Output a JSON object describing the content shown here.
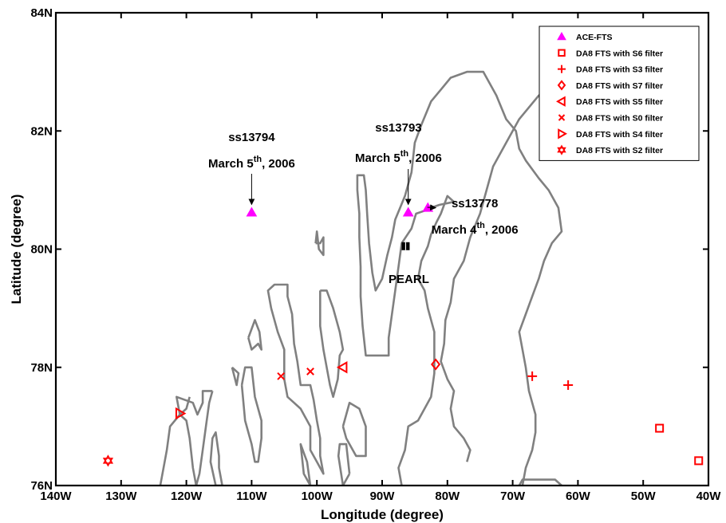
{
  "chart_data": {
    "type": "scatter",
    "xlabel": "Longitude (degree)",
    "ylabel": "Latitude (degree)",
    "xlim": [
      -140,
      -40
    ],
    "ylim": [
      76,
      84
    ],
    "x_ticks": [
      -140,
      -130,
      -120,
      -110,
      -100,
      -90,
      -80,
      -70,
      -60,
      -50,
      -40
    ],
    "x_tick_labels": [
      "140W",
      "130W",
      "120W",
      "110W",
      "100W",
      "90W",
      "80W",
      "70W",
      "60W",
      "50W",
      "40W"
    ],
    "y_ticks": [
      76,
      78,
      80,
      82,
      84
    ],
    "y_tick_labels": [
      "76N",
      "78N",
      "80N",
      "82N",
      "84N"
    ],
    "grid": false,
    "legend_position": "top-right",
    "colors": {
      "ace": "#ff00ff",
      "da8": "#ff0000",
      "coast": "#808080",
      "station": "#000000"
    },
    "series": [
      {
        "name": "ACE-FTS",
        "marker": "triangle-up",
        "color": "#ff00ff",
        "filled": true,
        "points": [
          [
            -110,
            80.62
          ],
          [
            -86,
            80.62
          ],
          [
            -83,
            80.7
          ]
        ]
      },
      {
        "name": "DA8 FTS with S6 filter",
        "marker": "square",
        "color": "#ff0000",
        "points": [
          [
            -47.5,
            76.97
          ],
          [
            -41.5,
            76.42
          ]
        ]
      },
      {
        "name": "DA8 FTS with S3 filter",
        "marker": "plus",
        "color": "#ff0000",
        "points": [
          [
            -67,
            77.85
          ],
          [
            -61.5,
            77.7
          ]
        ]
      },
      {
        "name": "DA8 FTS with S7 filter",
        "marker": "diamond",
        "color": "#ff0000",
        "points": [
          [
            -81.8,
            78.05
          ]
        ]
      },
      {
        "name": "DA8 FTS with S5 filter",
        "marker": "triangle-left",
        "color": "#ff0000",
        "points": [
          [
            -96,
            78
          ]
        ]
      },
      {
        "name": "DA8 FTS with S0 filter",
        "marker": "x",
        "color": "#ff0000",
        "points": [
          [
            -105.5,
            77.85
          ],
          [
            -101,
            77.93
          ]
        ]
      },
      {
        "name": "DA8 FTS with S4 filter",
        "marker": "triangle-right",
        "color": "#ff0000",
        "points": [
          [
            -121,
            77.22
          ]
        ]
      },
      {
        "name": "DA8 FTS with S2 filter",
        "marker": "hexagram",
        "color": "#ff0000",
        "points": [
          [
            -132,
            76.42
          ]
        ]
      }
    ],
    "station": {
      "label": "PEARL",
      "lon": -86.4,
      "lat": 80.05
    },
    "annotations": [
      {
        "id": "ss13794",
        "orbit": "ss13794",
        "date": "March 5",
        "sup": "th",
        "year": ", 2006"
      },
      {
        "id": "ss13793",
        "orbit": "ss13793",
        "date": "March 5",
        "sup": "th",
        "year": ", 2006"
      },
      {
        "id": "ss13778",
        "orbit": "ss13778",
        "date": "March 4",
        "sup": "th",
        "year": ", 2006"
      }
    ],
    "coastlines": [
      [
        [
          -77,
          76.4
        ],
        [
          -76.5,
          76.6
        ],
        [
          -77.5,
          76.8
        ],
        [
          -79,
          77
        ],
        [
          -79.5,
          77.3
        ],
        [
          -79,
          77.6
        ],
        [
          -80,
          77.8
        ],
        [
          -81,
          78.1
        ],
        [
          -80.5,
          78.4
        ],
        [
          -80.3,
          78.8
        ],
        [
          -79.5,
          79.1
        ],
        [
          -79,
          79.5
        ],
        [
          -77.5,
          79.8
        ],
        [
          -76.5,
          80.2
        ],
        [
          -75,
          80.6
        ],
        [
          -74,
          81
        ],
        [
          -73,
          81.4
        ],
        [
          -71,
          81.8
        ],
        [
          -69,
          82.2
        ],
        [
          -66,
          82.6
        ],
        [
          -62,
          82.9
        ],
        [
          -58,
          83.1
        ],
        [
          -55,
          83.3
        ],
        [
          -51,
          83.4
        ],
        [
          -46,
          83.5
        ]
      ],
      [
        [
          -87,
          76
        ],
        [
          -87.5,
          76.3
        ],
        [
          -86.5,
          76.6
        ],
        [
          -86,
          77
        ],
        [
          -84.5,
          77.1
        ],
        [
          -82.5,
          77.5
        ],
        [
          -82,
          77.9
        ],
        [
          -82,
          78.6
        ],
        [
          -83,
          79
        ],
        [
          -83.5,
          79.3
        ],
        [
          -84.5,
          79.5
        ],
        [
          -84,
          79.8
        ],
        [
          -83,
          80.05
        ],
        [
          -82.5,
          80.25
        ],
        [
          -81.7,
          80.45
        ],
        [
          -81,
          80.6
        ],
        [
          -80,
          80.9
        ],
        [
          -79,
          80.8
        ],
        [
          -81.2,
          80.75
        ],
        [
          -82.5,
          80.7
        ],
        [
          -83.5,
          80.65
        ],
        [
          -84.8,
          80.6
        ],
        [
          -85.5,
          80.35
        ],
        [
          -87,
          80.1
        ],
        [
          -87.5,
          79.7
        ],
        [
          -88,
          79.3
        ],
        [
          -88.5,
          78.9
        ],
        [
          -89,
          78.5
        ],
        [
          -89,
          78.2
        ],
        [
          -92.5,
          78.2
        ],
        [
          -93,
          78.7
        ],
        [
          -93.3,
          79.2
        ],
        [
          -93.3,
          79.7
        ],
        [
          -93.5,
          80.2
        ],
        [
          -93.5,
          80.6
        ],
        [
          -93.8,
          81
        ],
        [
          -93.8,
          81.25
        ],
        [
          -92.8,
          81.25
        ],
        [
          -92.5,
          81
        ],
        [
          -92.3,
          80.6
        ],
        [
          -92,
          80.1
        ],
        [
          -91.5,
          79.6
        ],
        [
          -91,
          79.3
        ],
        [
          -90,
          79.5
        ],
        [
          -89.2,
          79.9
        ],
        [
          -88.5,
          80.2
        ],
        [
          -88,
          80.5
        ],
        [
          -86.5,
          80.9
        ],
        [
          -85.5,
          81.3
        ],
        [
          -85,
          81.8
        ],
        [
          -84,
          82.1
        ],
        [
          -82.5,
          82.5
        ],
        [
          -81,
          82.7
        ],
        [
          -79.5,
          82.9
        ],
        [
          -77,
          83
        ],
        [
          -74.5,
          83
        ],
        [
          -72.5,
          82.6
        ],
        [
          -71,
          82.2
        ],
        [
          -69.5,
          82
        ],
        [
          -69,
          81.7
        ],
        [
          -68,
          81.5
        ],
        [
          -66,
          81.2
        ],
        [
          -64.5,
          81
        ],
        [
          -63,
          80.7
        ],
        [
          -62.5,
          80.3
        ],
        [
          -64,
          80.1
        ],
        [
          -65.2,
          79.8
        ],
        [
          -66,
          79.5
        ],
        [
          -67,
          79.2
        ],
        [
          -68,
          78.9
        ],
        [
          -69,
          78.6
        ],
        [
          -68.5,
          78.3
        ],
        [
          -68,
          78
        ],
        [
          -67.5,
          77.6
        ],
        [
          -66.5,
          77.2
        ],
        [
          -66.5,
          76.9
        ],
        [
          -67,
          76.6
        ],
        [
          -68,
          76.3
        ],
        [
          -68.5,
          76
        ]
      ],
      [
        [
          -107,
          79
        ],
        [
          -107.5,
          79.3
        ],
        [
          -106.5,
          79.4
        ],
        [
          -104.5,
          79.4
        ],
        [
          -104.5,
          79.2
        ],
        [
          -103.8,
          78.9
        ],
        [
          -103.5,
          78.4
        ],
        [
          -103,
          78.1
        ],
        [
          -102.5,
          77.7
        ],
        [
          -101,
          77.7
        ],
        [
          -100.5,
          77.45
        ],
        [
          -100,
          77.1
        ],
        [
          -99.5,
          76.8
        ],
        [
          -99.5,
          76.5
        ],
        [
          -99,
          76.2
        ],
        [
          -100,
          76.4
        ],
        [
          -101,
          76.6
        ],
        [
          -101,
          77
        ],
        [
          -102.5,
          77.3
        ],
        [
          -103.5,
          77.4
        ],
        [
          -104.5,
          77.5
        ],
        [
          -105,
          77.8
        ],
        [
          -105,
          78.3
        ],
        [
          -106,
          78.6
        ],
        [
          -107,
          79
        ]
      ],
      [
        [
          -99.5,
          79.3
        ],
        [
          -99.5,
          78.7
        ],
        [
          -99,
          78.3
        ],
        [
          -98.5,
          78
        ],
        [
          -98,
          77.7
        ],
        [
          -97.5,
          77.5
        ],
        [
          -96.8,
          77.8
        ],
        [
          -96.5,
          78.2
        ],
        [
          -96,
          78.3
        ],
        [
          -96.5,
          78.6
        ],
        [
          -97.5,
          79
        ],
        [
          -98.5,
          79.3
        ],
        [
          -99.5,
          79.3
        ]
      ],
      [
        [
          -100.2,
          80.1
        ],
        [
          -100,
          80.3
        ],
        [
          -99.7,
          80
        ],
        [
          -99,
          79.9
        ],
        [
          -99,
          80.2
        ],
        [
          -99.5,
          80.1
        ],
        [
          -100.2,
          80.1
        ]
      ],
      [
        [
          -101,
          76
        ],
        [
          -101.5,
          76.4
        ],
        [
          -102.5,
          76.7
        ],
        [
          -102,
          76.2
        ],
        [
          -101,
          76
        ]
      ],
      [
        [
          -96,
          77
        ],
        [
          -95,
          77.4
        ],
        [
          -93.5,
          77.3
        ],
        [
          -92.5,
          77
        ],
        [
          -92.5,
          76.5
        ],
        [
          -94,
          76.5
        ],
        [
          -95.5,
          76.8
        ],
        [
          -96,
          77
        ]
      ],
      [
        [
          -95,
          76.2
        ],
        [
          -96,
          76
        ],
        [
          -96.7,
          76.5
        ],
        [
          -96.5,
          76.7
        ],
        [
          -95.5,
          76.7
        ],
        [
          -95,
          76.2
        ]
      ],
      [
        [
          -111.5,
          77.7
        ],
        [
          -111,
          78
        ],
        [
          -110,
          78
        ],
        [
          -109.5,
          77.5
        ],
        [
          -108.5,
          77.1
        ],
        [
          -108.5,
          76.8
        ],
        [
          -109,
          76.4
        ],
        [
          -109.5,
          76.4
        ],
        [
          -110,
          76.7
        ],
        [
          -111,
          77.1
        ],
        [
          -111.5,
          77.7
        ]
      ],
      [
        [
          -110.5,
          78.5
        ],
        [
          -109.5,
          78.8
        ],
        [
          -108.8,
          78.6
        ],
        [
          -108.5,
          78.3
        ],
        [
          -109,
          78.4
        ],
        [
          -110,
          78.3
        ],
        [
          -110.5,
          78.5
        ]
      ],
      [
        [
          -113,
          78
        ],
        [
          -112,
          77.9
        ],
        [
          -112.3,
          77.7
        ],
        [
          -113,
          78
        ]
      ],
      [
        [
          -115.5,
          76
        ],
        [
          -116.3,
          76.4
        ],
        [
          -116,
          76.8
        ],
        [
          -115.5,
          76.9
        ],
        [
          -115,
          76.5
        ],
        [
          -115,
          76.3
        ],
        [
          -114.5,
          76
        ],
        [
          -115.5,
          76
        ]
      ],
      [
        [
          -116,
          77.6
        ],
        [
          -116.5,
          77.4
        ],
        [
          -117,
          77
        ],
        [
          -117.5,
          76.6
        ],
        [
          -118,
          76.2
        ],
        [
          -118.5,
          76
        ],
        [
          -119,
          76.3
        ],
        [
          -119.5,
          76.8
        ],
        [
          -120,
          77.1
        ],
        [
          -121,
          77.2
        ],
        [
          -121.5,
          77.5
        ],
        [
          -119,
          77.4
        ],
        [
          -118.3,
          77.2
        ],
        [
          -117.5,
          77.4
        ],
        [
          -117.5,
          77.6
        ],
        [
          -116,
          77.6
        ]
      ],
      [
        [
          -124,
          76
        ],
        [
          -123.5,
          76.3
        ],
        [
          -123,
          76.6
        ],
        [
          -122.5,
          77
        ],
        [
          -121,
          77.2
        ],
        [
          -120,
          77.3
        ],
        [
          -119.5,
          77.5
        ]
      ],
      [
        [
          -69,
          76
        ],
        [
          -68.5,
          76.1
        ],
        [
          -63.5,
          76.1
        ],
        [
          -62.5,
          76
        ]
      ]
    ]
  }
}
